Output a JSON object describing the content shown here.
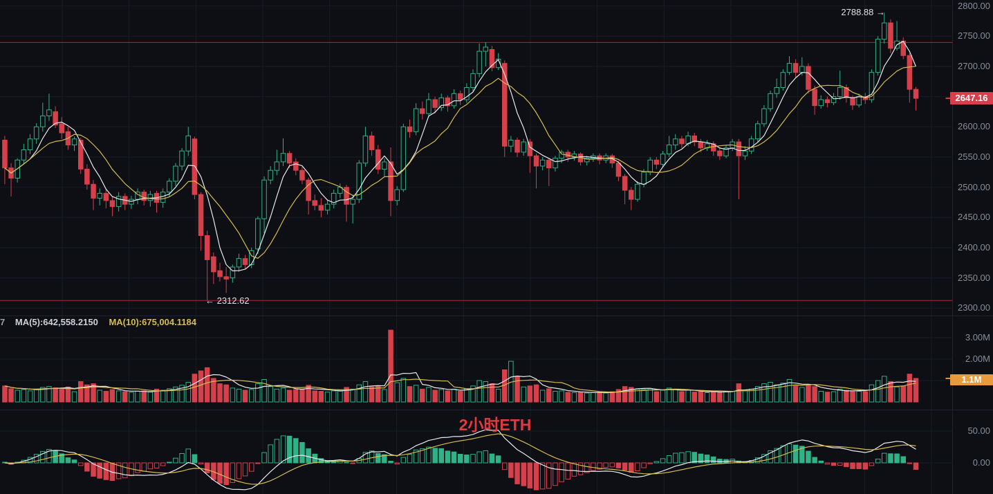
{
  "chart_data": {
    "type": "candlestick",
    "symbol_label": "2小时ETH",
    "panes": [
      "price",
      "volume",
      "macd"
    ],
    "ohlc_format": [
      "open",
      "high",
      "low",
      "close",
      "volume_millions"
    ],
    "price_axis_ticks": [
      "2800.00",
      "2750.00",
      "2700.00",
      "2600.00",
      "2550.00",
      "2500.00",
      "2450.00",
      "2400.00",
      "2350.00",
      "2300.00"
    ],
    "price_grid_values": [
      2800,
      2750,
      2700,
      2650,
      2600,
      2550,
      2500,
      2450,
      2400,
      2350,
      2300
    ],
    "volume_axis_ticks": [
      "3.00M",
      "2.00M"
    ],
    "volume_axis_values": [
      3.0,
      2.0
    ],
    "macd_axis_ticks": [
      "50.00",
      "0.00"
    ],
    "macd_axis_values": [
      50,
      0
    ],
    "last_price": "2647.16",
    "last_price_value": 2647.16,
    "last_volume": "1.1M",
    "last_volume_value": 1.1,
    "high_annotation": {
      "text": "2788.88 →",
      "price": 2788.88
    },
    "low_annotation": {
      "text": "← 2312.62",
      "price": 2312.62
    },
    "alert_lines": [
      2739.5,
      2312.62
    ],
    "volume_ma_labels": {
      "clipped_prefix": "7",
      "ma5": "MA(5):642,558.2150",
      "ma10": "MA(10):675,004.1184"
    },
    "price_ma_periods": [
      5,
      10
    ],
    "macd_params": [
      12,
      26,
      9
    ],
    "candles": [
      [
        2578,
        2585,
        2505,
        2532,
        0.75
      ],
      [
        2532,
        2540,
        2485,
        2515,
        0.62
      ],
      [
        2515,
        2548,
        2508,
        2545,
        0.55
      ],
      [
        2545,
        2572,
        2538,
        2562,
        0.58
      ],
      [
        2562,
        2588,
        2555,
        2580,
        0.52
      ],
      [
        2580,
        2606,
        2572,
        2600,
        0.6
      ],
      [
        2600,
        2640,
        2592,
        2618,
        0.68
      ],
      [
        2618,
        2655,
        2610,
        2628,
        0.72
      ],
      [
        2625,
        2634,
        2598,
        2603,
        0.66
      ],
      [
        2605,
        2616,
        2580,
        2590,
        0.58
      ],
      [
        2592,
        2600,
        2562,
        2570,
        0.7
      ],
      [
        2570,
        2584,
        2560,
        2580,
        0.48
      ],
      [
        2578,
        2582,
        2522,
        2530,
        0.95
      ],
      [
        2530,
        2538,
        2496,
        2505,
        0.8
      ],
      [
        2505,
        2512,
        2462,
        2482,
        0.85
      ],
      [
        2482,
        2498,
        2470,
        2490,
        0.55
      ],
      [
        2490,
        2496,
        2465,
        2478,
        0.5
      ],
      [
        2478,
        2484,
        2452,
        2468,
        0.58
      ],
      [
        2468,
        2492,
        2460,
        2485,
        0.52
      ],
      [
        2485,
        2490,
        2462,
        2472,
        0.48
      ],
      [
        2472,
        2486,
        2464,
        2480,
        0.45
      ],
      [
        2480,
        2498,
        2472,
        2492,
        0.5
      ],
      [
        2492,
        2496,
        2470,
        2478,
        0.52
      ],
      [
        2478,
        2494,
        2468,
        2488,
        0.46
      ],
      [
        2490,
        2494,
        2458,
        2475,
        0.6
      ],
      [
        2475,
        2498,
        2466,
        2492,
        0.55
      ],
      [
        2492,
        2515,
        2484,
        2510,
        0.62
      ],
      [
        2510,
        2540,
        2502,
        2535,
        0.7
      ],
      [
        2535,
        2565,
        2528,
        2560,
        0.78
      ],
      [
        2560,
        2600,
        2552,
        2585,
        0.92
      ],
      [
        2580,
        2584,
        2480,
        2488,
        1.3
      ],
      [
        2488,
        2492,
        2395,
        2420,
        1.45
      ],
      [
        2420,
        2428,
        2312.62,
        2380,
        1.6
      ],
      [
        2385,
        2392,
        2340,
        2360,
        1.1
      ],
      [
        2362,
        2375,
        2344,
        2352,
        0.85
      ],
      [
        2352,
        2368,
        2325,
        2348,
        0.8
      ],
      [
        2350,
        2372,
        2342,
        2368,
        0.65
      ],
      [
        2368,
        2390,
        2360,
        2382,
        0.6
      ],
      [
        2382,
        2388,
        2365,
        2372,
        0.55
      ],
      [
        2372,
        2400,
        2366,
        2395,
        0.58
      ],
      [
        2398,
        2452,
        2390,
        2448,
        0.85
      ],
      [
        2448,
        2518,
        2424,
        2512,
        1.05
      ],
      [
        2512,
        2535,
        2505,
        2528,
        0.72
      ],
      [
        2528,
        2562,
        2520,
        2542,
        0.6
      ],
      [
        2542,
        2581,
        2535,
        2556,
        0.65
      ],
      [
        2556,
        2560,
        2532,
        2540,
        0.55
      ],
      [
        2542,
        2548,
        2520,
        2528,
        0.58
      ],
      [
        2528,
        2534,
        2505,
        2512,
        0.6
      ],
      [
        2512,
        2516,
        2455,
        2478,
        0.78
      ],
      [
        2478,
        2488,
        2462,
        2470,
        0.52
      ],
      [
        2470,
        2482,
        2450,
        2462,
        0.5
      ],
      [
        2462,
        2478,
        2455,
        2472,
        0.46
      ],
      [
        2472,
        2496,
        2465,
        2490,
        0.52
      ],
      [
        2490,
        2506,
        2482,
        2500,
        0.55
      ],
      [
        2500,
        2504,
        2443,
        2472,
        0.68
      ],
      [
        2472,
        2486,
        2440,
        2480,
        0.6
      ],
      [
        2480,
        2545,
        2474,
        2540,
        0.8
      ],
      [
        2540,
        2600,
        2534,
        2585,
        0.95
      ],
      [
        2585,
        2592,
        2552,
        2562,
        0.7
      ],
      [
        2562,
        2570,
        2522,
        2530,
        0.75
      ],
      [
        2530,
        2548,
        2518,
        2542,
        0.58
      ],
      [
        2542,
        2566,
        2452,
        2478,
        3.35
      ],
      [
        2478,
        2502,
        2470,
        2496,
        0.9
      ],
      [
        2496,
        2605,
        2492,
        2600,
        1.1
      ],
      [
        2600,
        2612,
        2582,
        2592,
        0.72
      ],
      [
        2592,
        2639,
        2586,
        2630,
        0.78
      ],
      [
        2630,
        2642,
        2612,
        2622,
        0.6
      ],
      [
        2622,
        2656,
        2616,
        2645,
        0.68
      ],
      [
        2645,
        2650,
        2622,
        2632,
        0.55
      ],
      [
        2632,
        2655,
        2626,
        2648,
        0.58
      ],
      [
        2648,
        2652,
        2625,
        2635,
        0.52
      ],
      [
        2635,
        2662,
        2630,
        2655,
        0.6
      ],
      [
        2655,
        2660,
        2636,
        2645,
        0.5
      ],
      [
        2645,
        2672,
        2640,
        2665,
        0.62
      ],
      [
        2665,
        2695,
        2658,
        2688,
        0.75
      ],
      [
        2688,
        2738,
        2682,
        2725,
        1.0
      ],
      [
        2725,
        2740,
        2700,
        2732,
        0.95
      ],
      [
        2728,
        2734,
        2692,
        2698,
        0.85
      ],
      [
        2698,
        2722,
        2694,
        2712,
        0.6
      ],
      [
        2705,
        2710,
        2550,
        2568,
        1.5
      ],
      [
        2568,
        2585,
        2558,
        2578,
        1.9
      ],
      [
        2578,
        2582,
        2550,
        2558,
        1.2
      ],
      [
        2558,
        2580,
        2552,
        2575,
        0.7
      ],
      [
        2575,
        2580,
        2524,
        2552,
        0.75
      ],
      [
        2552,
        2556,
        2498,
        2535,
        0.8
      ],
      [
        2535,
        2550,
        2528,
        2545,
        0.55
      ],
      [
        2545,
        2548,
        2502,
        2532,
        0.62
      ],
      [
        2532,
        2552,
        2526,
        2548,
        0.5
      ],
      [
        2548,
        2562,
        2540,
        2558,
        0.52
      ],
      [
        2558,
        2562,
        2542,
        2550,
        0.45
      ],
      [
        2550,
        2560,
        2544,
        2555,
        0.44
      ],
      [
        2555,
        2558,
        2536,
        2542,
        0.46
      ],
      [
        2542,
        2552,
        2536,
        2548,
        0.42
      ],
      [
        2548,
        2556,
        2542,
        2552,
        0.44
      ],
      [
        2552,
        2556,
        2538,
        2545,
        0.45
      ],
      [
        2545,
        2556,
        2540,
        2552,
        0.42
      ],
      [
        2552,
        2555,
        2532,
        2540,
        0.48
      ],
      [
        2540,
        2544,
        2510,
        2518,
        0.58
      ],
      [
        2518,
        2522,
        2472,
        2495,
        0.72
      ],
      [
        2495,
        2500,
        2462,
        2480,
        0.68
      ],
      [
        2480,
        2510,
        2476,
        2505,
        0.6
      ],
      [
        2505,
        2530,
        2500,
        2525,
        0.58
      ],
      [
        2525,
        2550,
        2520,
        2545,
        0.62
      ],
      [
        2545,
        2550,
        2530,
        2538,
        0.48
      ],
      [
        2538,
        2560,
        2534,
        2555,
        0.55
      ],
      [
        2555,
        2585,
        2550,
        2570,
        0.65
      ],
      [
        2570,
        2588,
        2562,
        2580,
        0.58
      ],
      [
        2580,
        2585,
        2565,
        2572,
        0.48
      ],
      [
        2572,
        2592,
        2568,
        2585,
        0.55
      ],
      [
        2585,
        2590,
        2568,
        2575,
        0.46
      ],
      [
        2575,
        2580,
        2558,
        2565,
        0.48
      ],
      [
        2565,
        2578,
        2560,
        2572,
        0.44
      ],
      [
        2572,
        2576,
        2552,
        2560,
        0.5
      ],
      [
        2560,
        2566,
        2545,
        2552,
        0.46
      ],
      [
        2552,
        2570,
        2548,
        2565,
        0.48
      ],
      [
        2565,
        2580,
        2560,
        2575,
        0.5
      ],
      [
        2575,
        2580,
        2480,
        2552,
        0.85
      ],
      [
        2552,
        2568,
        2545,
        2560,
        0.52
      ],
      [
        2560,
        2585,
        2555,
        2580,
        0.6
      ],
      [
        2580,
        2610,
        2575,
        2605,
        0.72
      ],
      [
        2605,
        2636,
        2600,
        2630,
        0.85
      ],
      [
        2630,
        2660,
        2625,
        2655,
        0.92
      ],
      [
        2655,
        2680,
        2648,
        2665,
        0.8
      ],
      [
        2665,
        2695,
        2660,
        2690,
        0.88
      ],
      [
        2690,
        2717,
        2686,
        2705,
        1.05
      ],
      [
        2705,
        2712,
        2682,
        2690,
        0.75
      ],
      [
        2690,
        2715,
        2685,
        2700,
        0.68
      ],
      [
        2700,
        2705,
        2655,
        2662,
        0.78
      ],
      [
        2662,
        2668,
        2620,
        2635,
        0.72
      ],
      [
        2635,
        2652,
        2630,
        2645,
        0.5
      ],
      [
        2645,
        2650,
        2632,
        2640,
        0.46
      ],
      [
        2640,
        2656,
        2636,
        2650,
        0.48
      ],
      [
        2650,
        2693,
        2645,
        2665,
        0.6
      ],
      [
        2665,
        2670,
        2640,
        2648,
        0.55
      ],
      [
        2648,
        2652,
        2628,
        2636,
        0.52
      ],
      [
        2636,
        2655,
        2632,
        2650,
        0.5
      ],
      [
        2650,
        2656,
        2638,
        2645,
        0.48
      ],
      [
        2645,
        2695,
        2640,
        2690,
        0.8
      ],
      [
        2690,
        2750,
        2685,
        2745,
        1.0
      ],
      [
        2745,
        2788.88,
        2738,
        2772,
        1.2
      ],
      [
        2772,
        2778,
        2722,
        2730,
        0.95
      ],
      [
        2730,
        2775,
        2726,
        2742,
        0.7
      ],
      [
        2742,
        2748,
        2712,
        2718,
        0.75
      ],
      [
        2718,
        2722,
        2640,
        2662,
        1.3
      ],
      [
        2662,
        2666,
        2627,
        2647.16,
        1.1
      ]
    ]
  },
  "colors": {
    "background": "#0d0f14",
    "grid": "#171c26",
    "pane_separator": "#1d2330",
    "axis_line": "#1d2330",
    "axis_text": "#878e9b",
    "up": "#2FB286",
    "down": "#D5404B",
    "alert_line": "#B6232E",
    "ma5_line": "#E8EAED",
    "ma10_line": "#D6BC4F",
    "price_badge_bg": "#D5404B",
    "volume_badge_bg": "#E89B3C",
    "watermark": "#E0393F",
    "annotation_text": "#DDE1E7"
  }
}
